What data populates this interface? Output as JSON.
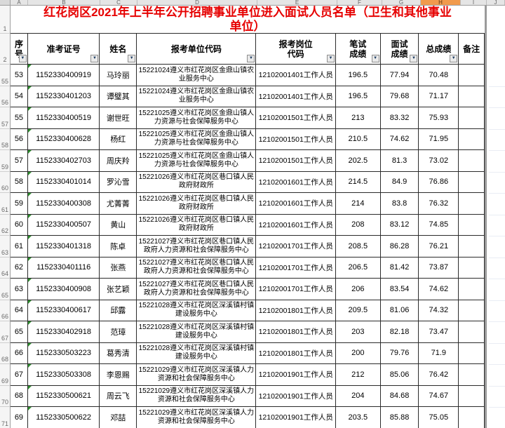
{
  "sheet": {
    "title": "红花岗区2021年上半年公开招聘事业单位进入面试人员名单（卫生和其他事业\n单位）",
    "column_letters": [
      "A",
      "B",
      "C",
      "D",
      "E",
      "F",
      "G",
      "H",
      "I",
      "J"
    ],
    "selected_column_letter": "H",
    "headers": [
      "序\n号",
      "准考证号",
      "姓名",
      "报考单位代码",
      "报考岗位\n代码",
      "笔试\n成绩",
      "面试\n成绩",
      "总成绩",
      "备注"
    ],
    "gutter_rows": [
      "1",
      "2",
      "55",
      "56",
      "57",
      "58",
      "59",
      "60",
      "61",
      "62",
      "63",
      "64",
      "65",
      "66",
      "67",
      "68",
      "69",
      "70",
      "71"
    ],
    "rows": [
      {
        "no": "53",
        "ticket": "1152330400919",
        "name": "马玲丽",
        "unit": "15221024遵义市红花岗区金鼎山镇农业服务中心",
        "post": "12102001401工作人员",
        "written": "196.5",
        "interview": "77.94",
        "total": "70.48",
        "note": ""
      },
      {
        "no": "54",
        "ticket": "1152330401203",
        "name": "谭璧其",
        "unit": "15221024遵义市红花岗区金鼎山镇农业服务中心",
        "post": "12102001401工作人员",
        "written": "196.5",
        "interview": "79.68",
        "total": "71.17",
        "note": ""
      },
      {
        "no": "55",
        "ticket": "1152330400519",
        "name": "谢世旺",
        "unit": "15221025遵义市红花岗区金鼎山镇人力资源与社会保障服务中心",
        "post": "12102001501工作人员",
        "written": "213",
        "interview": "83.32",
        "total": "75.93",
        "note": ""
      },
      {
        "no": "56",
        "ticket": "1152330400628",
        "name": "杨红",
        "unit": "15221025遵义市红花岗区金鼎山镇人力资源与社会保障服务中心",
        "post": "12102001501工作人员",
        "written": "210.5",
        "interview": "74.62",
        "total": "71.95",
        "note": ""
      },
      {
        "no": "57",
        "ticket": "1152330402703",
        "name": "周庆羚",
        "unit": "15221025遵义市红花岗区金鼎山镇人力资源与社会保障服务中心",
        "post": "12102001501工作人员",
        "written": "202.5",
        "interview": "81.3",
        "total": "73.02",
        "note": ""
      },
      {
        "no": "58",
        "ticket": "1152330401014",
        "name": "罗沁雪",
        "unit": "15221026遵义市红花岗区巷口镇人民政府财政所",
        "post": "12102001601工作人员",
        "written": "214.5",
        "interview": "84.9",
        "total": "76.86",
        "note": ""
      },
      {
        "no": "59",
        "ticket": "1152330400308",
        "name": "尤菁菁",
        "unit": "15221026遵义市红花岗区巷口镇人民政府财政所",
        "post": "12102001601工作人员",
        "written": "214",
        "interview": "83.8",
        "total": "76.32",
        "note": ""
      },
      {
        "no": "60",
        "ticket": "1152330400507",
        "name": "黄山",
        "unit": "15221026遵义市红花岗区巷口镇人民政府财政所",
        "post": "12102001601工作人员",
        "written": "208",
        "interview": "83.12",
        "total": "74.85",
        "note": ""
      },
      {
        "no": "61",
        "ticket": "1152330401318",
        "name": "陈卓",
        "unit": "15221027遵义市红花岗区巷口镇人民政府人力资源和社会保障服务中心",
        "post": "12102001701工作人员",
        "written": "208.5",
        "interview": "86.28",
        "total": "76.21",
        "note": ""
      },
      {
        "no": "62",
        "ticket": "1152330401116",
        "name": "张燕",
        "unit": "15221027遵义市红花岗区巷口镇人民政府人力资源和社会保障服务中心",
        "post": "12102001701工作人员",
        "written": "206.5",
        "interview": "81.42",
        "total": "73.87",
        "note": ""
      },
      {
        "no": "63",
        "ticket": "1152330400908",
        "name": "张艺颖",
        "unit": "15221027遵义市红花岗区巷口镇人民政府人力资源和社会保障服务中心",
        "post": "12102001701工作人员",
        "written": "206",
        "interview": "83.54",
        "total": "74.62",
        "note": ""
      },
      {
        "no": "64",
        "ticket": "1152330400617",
        "name": "邱露",
        "unit": "15221028遵义市红花岗区深溪镇村镇建设服务中心",
        "post": "12102001801工作人员",
        "written": "209.5",
        "interview": "81.06",
        "total": "74.32",
        "note": ""
      },
      {
        "no": "65",
        "ticket": "1152330402918",
        "name": "范璋",
        "unit": "15221028遵义市红花岗区深溪镇村镇建设服务中心",
        "post": "12102001801工作人员",
        "written": "203",
        "interview": "82.18",
        "total": "73.47",
        "note": ""
      },
      {
        "no": "66",
        "ticket": "1152330503223",
        "name": "葛秀清",
        "unit": "15221028遵义市红花岗区深溪镇村镇建设服务中心",
        "post": "12102001801工作人员",
        "written": "200",
        "interview": "79.76",
        "total": "71.9",
        "note": ""
      },
      {
        "no": "67",
        "ticket": "1152330503308",
        "name": "李恩赐",
        "unit": "15221029遵义市红花岗区深溪镇人力资源和社会保障服务中心",
        "post": "12102001901工作人员",
        "written": "212",
        "interview": "85.06",
        "total": "76.42",
        "note": ""
      },
      {
        "no": "68",
        "ticket": "1152330500621",
        "name": "周云飞",
        "unit": "15221029遵义市红花岗区深溪镇人力资源和社会保障服务中心",
        "post": "12102001901工作人员",
        "written": "204",
        "interview": "84.68",
        "total": "74.67",
        "note": ""
      },
      {
        "no": "69",
        "ticket": "1152330500622",
        "name": "邓喆",
        "unit": "15221029遵义市红花岗区深溪镇人力资源和社会保障服务中心",
        "post": "12102001901工作人员",
        "written": "203.5",
        "interview": "85.88",
        "total": "75.05",
        "note": ""
      }
    ]
  },
  "icons": {
    "filter_arrow": "▼"
  },
  "colors": {
    "title_red": "#e60000",
    "selected_column_orange": "#f19a4d",
    "cell_flag_green": "#2f8f2f",
    "filter_arrow_blue": "#17375e"
  }
}
